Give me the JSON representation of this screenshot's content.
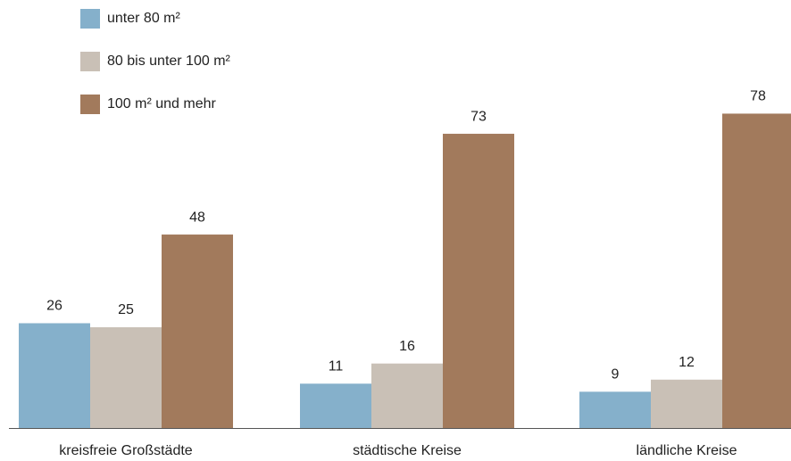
{
  "chart_data": {
    "type": "bar",
    "categories": [
      "kreisfreie Großstädte",
      "städtische Kreise",
      "ländliche Kreise"
    ],
    "series": [
      {
        "name": "unter 80 m²",
        "color": "#85b0cb",
        "values": [
          26,
          11,
          9
        ]
      },
      {
        "name": "80 bis unter 100 m²",
        "color": "#c9c0b6",
        "values": [
          25,
          16,
          12
        ]
      },
      {
        "name": "100 m² und mehr",
        "color": "#a27a5c",
        "values": [
          48,
          73,
          78
        ]
      }
    ]
  }
}
